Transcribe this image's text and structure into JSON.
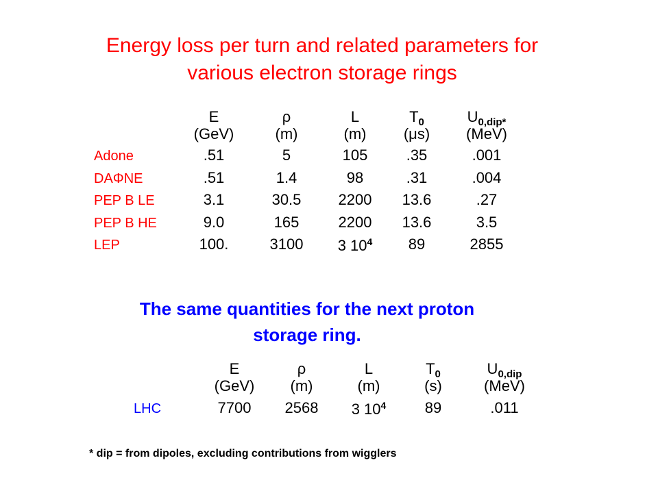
{
  "title": [
    "Energy loss per turn and related parameters for",
    "various electron storage rings"
  ],
  "table1": {
    "columns": [
      {
        "symbol": "E",
        "unit": "(GeV)"
      },
      {
        "symbol": "ρ",
        "unit": "(m)"
      },
      {
        "symbol": "L",
        "unit": "(m)"
      },
      {
        "symbol": "T",
        "sub": "0",
        "unit": "(μs)"
      },
      {
        "symbol": "U",
        "sub": "0,dip*",
        "unit": "(MeV)"
      }
    ],
    "rows": [
      {
        "label": "Adone",
        "cells": [
          ".51",
          "5",
          "105",
          ".35",
          ".001"
        ]
      },
      {
        "label": "DAΦNE",
        "cells": [
          ".51",
          "1.4",
          "98",
          ".31",
          ".004"
        ]
      },
      {
        "label": "PEP B LE",
        "cells": [
          "3.1",
          "30.5",
          "2200",
          "13.6",
          ".27"
        ]
      },
      {
        "label": "PEP B HE",
        "cells": [
          "9.0",
          "165",
          "2200",
          "13.6",
          "3.5"
        ]
      },
      {
        "label": "LEP",
        "cells": [
          "100.",
          "3100",
          {
            "text": "3 10",
            "sup": "4"
          },
          "89",
          "2855"
        ]
      }
    ]
  },
  "subtitle": [
    "The same quantities for the next proton",
    "storage ring."
  ],
  "table2": {
    "columns": [
      {
        "symbol": "E",
        "unit": "(GeV)"
      },
      {
        "symbol": "ρ",
        "unit": "(m)"
      },
      {
        "symbol": "L",
        "unit": "(m)"
      },
      {
        "symbol": "T",
        "sub": "0",
        "unit": "(s)"
      },
      {
        "symbol": "U",
        "sub": "0,dip",
        "unit": "(MeV)"
      }
    ],
    "rows": [
      {
        "label": "LHC",
        "cells": [
          "7700",
          "2568",
          {
            "text": "3 10",
            "sup": "4"
          },
          "89",
          ".011"
        ]
      }
    ]
  },
  "footnote": "* dip = from dipoles, excluding contributions from wigglers"
}
